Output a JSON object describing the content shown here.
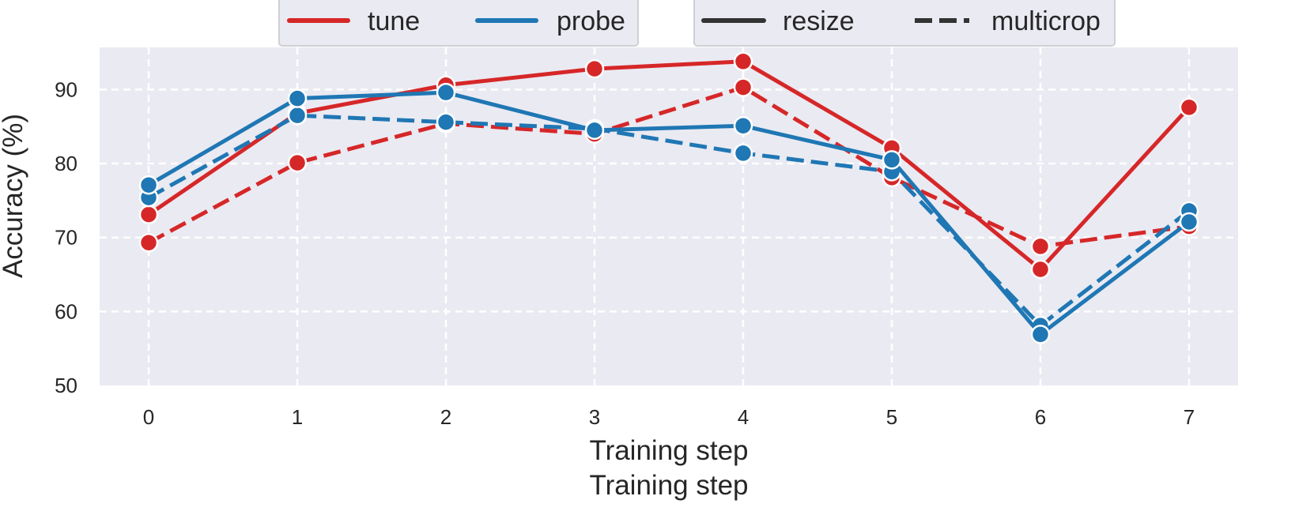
{
  "colors": {
    "tune": "#d62728",
    "probe": "#1f77b4",
    "plot_background": "#eaeaf2",
    "grid": "#ffffff",
    "text": "#262626",
    "legend_line": "#333333"
  },
  "legend_color": {
    "items": [
      {
        "label": "tune",
        "color": "#d62728"
      },
      {
        "label": "probe",
        "color": "#1f77b4"
      }
    ]
  },
  "legend_style": {
    "items": [
      {
        "label": "resize",
        "line_style": "solid"
      },
      {
        "label": "multicrop",
        "line_style": "dashed"
      }
    ]
  },
  "chart_data": {
    "type": "line",
    "xlabel": "Training step",
    "xlabel_secondary": "Training step",
    "ylabel": "Accuracy (%)",
    "x": [
      0,
      1,
      2,
      3,
      4,
      5,
      6,
      7
    ],
    "xlim": [
      -0.33,
      7.33
    ],
    "ylim": [
      50,
      95.7
    ],
    "x_ticks": [
      0,
      1,
      2,
      3,
      4,
      5,
      6,
      7
    ],
    "y_ticks": [
      50,
      60,
      70,
      80,
      90
    ],
    "grid": true,
    "grid_style": "dashed",
    "legend_placement": "top",
    "series": [
      {
        "name": "tune",
        "style": "multicrop",
        "color": "#d62728",
        "line_style": "dashed",
        "values": [
          69.3,
          80.1,
          85.4,
          84.0,
          90.3,
          78.1,
          68.8,
          71.5
        ]
      },
      {
        "name": "tune",
        "style": "resize",
        "color": "#d62728",
        "line_style": "solid",
        "values": [
          73.1,
          86.8,
          90.6,
          92.8,
          93.8,
          82.1,
          65.7,
          87.6
        ]
      },
      {
        "name": "probe",
        "style": "multicrop",
        "color": "#1f77b4",
        "line_style": "dashed",
        "values": [
          75.4,
          86.5,
          85.6,
          84.7,
          81.4,
          78.9,
          58.1,
          73.6
        ]
      },
      {
        "name": "probe",
        "style": "resize",
        "color": "#1f77b4",
        "line_style": "solid",
        "values": [
          77.1,
          88.8,
          89.6,
          84.5,
          85.1,
          80.5,
          56.9,
          72.1
        ]
      }
    ]
  }
}
